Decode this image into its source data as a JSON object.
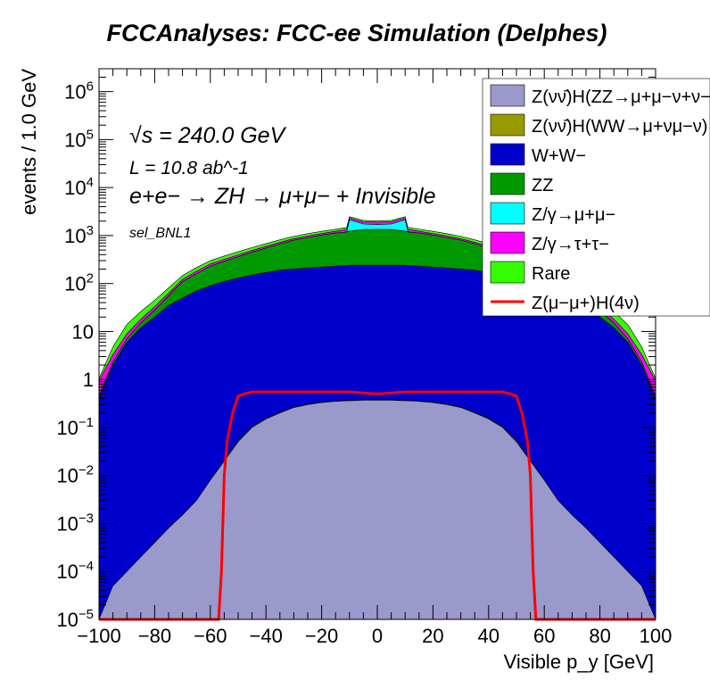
{
  "chart_data": {
    "type": "area",
    "stacked": true,
    "title": "FCCAnalyses: FCC-ee Simulation (Delphes)",
    "xlabel": "Visible p_y [GeV]",
    "ylabel": "events / 1.0 GeV",
    "xlim": [
      -100,
      100
    ],
    "ylim": [
      1e-05,
      3000000
    ],
    "yscale": "log",
    "x_ticks": [
      "−100",
      "−80",
      "−60",
      "−40",
      "−20",
      "0",
      "20",
      "40",
      "60",
      "80",
      "100"
    ],
    "y_ticks": [
      "10^-5",
      "10^-4",
      "10^-3",
      "10^-2",
      "10^-1",
      "1",
      "10",
      "10^2",
      "10^3",
      "10^4",
      "10^5",
      "10^6"
    ],
    "annotations": [
      "√s = 240.0 GeV",
      "L = 10.8 ab^-1",
      "e+e− → ZH → μ+μ− + Invisible",
      "sel_BNL1"
    ],
    "legend_position": "top-right",
    "x": [
      -100,
      -95,
      -90,
      -85,
      -80,
      -75,
      -70,
      -65,
      -60,
      -55,
      -50,
      -45,
      -40,
      -35,
      -30,
      -25,
      -20,
      -15,
      -11,
      -10,
      -5,
      0,
      5,
      10,
      11,
      15,
      20,
      25,
      30,
      35,
      40,
      45,
      50,
      55,
      60,
      65,
      70,
      75,
      80,
      85,
      90,
      95,
      100
    ],
    "series": [
      {
        "name": "Z(νν̄)H(ZZ→μ+μ−ν+ν−)",
        "color": "#9999cc",
        "values": [
          1e-05,
          5e-05,
          0.0001,
          0.0002,
          0.0004,
          0.0008,
          0.0015,
          0.003,
          0.008,
          0.02,
          0.05,
          0.1,
          0.15,
          0.2,
          0.26,
          0.3,
          0.33,
          0.35,
          0.36,
          0.36,
          0.37,
          0.37,
          0.37,
          0.36,
          0.36,
          0.35,
          0.33,
          0.3,
          0.26,
          0.2,
          0.15,
          0.1,
          0.05,
          0.02,
          0.008,
          0.003,
          0.0015,
          0.0008,
          0.0004,
          0.0002,
          0.0001,
          5e-05,
          1e-05
        ]
      },
      {
        "name": "Z(νν̄)H(WW→μ+νμ−ν)",
        "color": "#999900",
        "values": [
          0,
          0,
          0,
          0,
          0,
          0,
          0,
          0,
          0,
          0.001,
          0.003,
          0.004,
          0.005,
          0.006,
          0.006,
          0.007,
          0.007,
          0.007,
          0.007,
          0.007,
          0.007,
          0.007,
          0.007,
          0.007,
          0.007,
          0.007,
          0.007,
          0.007,
          0.006,
          0.006,
          0.005,
          0.004,
          0.003,
          0.001,
          0,
          0,
          0,
          0,
          0,
          0,
          0,
          0,
          0
        ]
      },
      {
        "name": "W+W−",
        "color": "#0000cc",
        "values": [
          0.4,
          2,
          6,
          12,
          20,
          35,
          50,
          70,
          90,
          110,
          130,
          150,
          170,
          190,
          200,
          210,
          220,
          230,
          235,
          240,
          240,
          240,
          240,
          240,
          235,
          230,
          220,
          210,
          200,
          190,
          170,
          150,
          130,
          110,
          90,
          70,
          50,
          35,
          20,
          12,
          6,
          2,
          0.4
        ]
      },
      {
        "name": "ZZ",
        "color": "#009900",
        "values": [
          0.05,
          0.3,
          1,
          3,
          8,
          20,
          60,
          90,
          140,
          180,
          230,
          300,
          380,
          480,
          600,
          700,
          800,
          900,
          950,
          1000,
          1100,
          1100,
          1100,
          1000,
          950,
          900,
          800,
          700,
          600,
          480,
          380,
          300,
          230,
          180,
          140,
          90,
          60,
          20,
          8,
          3,
          1,
          0.3,
          0.05
        ]
      },
      {
        "name": "Z/γ→μ+μ−",
        "color": "#00ffff",
        "values": [
          0,
          0,
          0,
          0,
          0,
          0,
          0,
          0,
          0,
          0,
          0,
          0,
          0,
          0,
          0,
          0,
          0,
          0,
          0,
          900,
          400,
          350,
          400,
          900,
          0,
          0,
          0,
          0,
          0,
          0,
          0,
          0,
          0,
          0,
          0,
          0,
          0,
          0,
          0,
          0,
          0,
          0,
          0
        ]
      },
      {
        "name": "Z/γ→τ+τ−",
        "color": "#ff00ff",
        "values": [
          0.5,
          1,
          2,
          3,
          5,
          8,
          12,
          20,
          25,
          30,
          35,
          40,
          45,
          50,
          60,
          70,
          80,
          100,
          150,
          200,
          200,
          200,
          200,
          200,
          150,
          100,
          80,
          70,
          60,
          50,
          45,
          40,
          35,
          30,
          25,
          20,
          12,
          8,
          5,
          3,
          2,
          1,
          0.5
        ]
      },
      {
        "name": "Rare",
        "color": "#33ff00",
        "values": [
          0.1,
          1.5,
          5,
          8,
          12,
          18,
          25,
          35,
          45,
          55,
          65,
          75,
          85,
          95,
          105,
          115,
          125,
          130,
          135,
          135,
          135,
          135,
          135,
          135,
          135,
          130,
          125,
          115,
          105,
          95,
          85,
          75,
          65,
          55,
          45,
          35,
          25,
          18,
          12,
          8,
          5,
          1.5,
          0.1
        ]
      }
    ],
    "signal": {
      "name": "Z(μ−μ+)H(4ν)",
      "color": "#ff0000",
      "x": [
        -100,
        -57,
        -56,
        -55,
        -54,
        -52,
        -50,
        -48,
        -45,
        -40,
        -30,
        -20,
        -10,
        0,
        10,
        20,
        30,
        40,
        45,
        48,
        50,
        52,
        54,
        55,
        56,
        57,
        100
      ],
      "values": [
        1e-05,
        1e-05,
        0.0001,
        0.01,
        0.05,
        0.2,
        0.45,
        0.5,
        0.55,
        0.55,
        0.55,
        0.55,
        0.55,
        0.5,
        0.55,
        0.55,
        0.55,
        0.55,
        0.55,
        0.5,
        0.45,
        0.2,
        0.05,
        0.01,
        0.0001,
        1e-05,
        1e-05
      ]
    }
  }
}
